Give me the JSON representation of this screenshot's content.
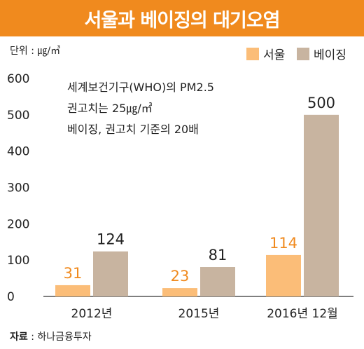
{
  "title": "서울과 베이징의 대기오염",
  "source_label": "자료",
  "source_value": "하나금융투자",
  "colors": {
    "seoul": "#fbbd78",
    "beijing": "#c8b4a0",
    "seoul_label": "#f08a1e",
    "title_bg": "#f08a1e"
  },
  "chart_data": {
    "type": "bar",
    "unit_label": "단위 : ㎍/㎥",
    "categories": [
      "2012년",
      "2015년",
      "2016년 12월"
    ],
    "series": [
      {
        "name": "서울",
        "values": [
          31,
          23,
          114
        ]
      },
      {
        "name": "베이징",
        "values": [
          124,
          81,
          500
        ]
      }
    ],
    "value_labels": [
      [
        "31",
        "23",
        "114"
      ],
      [
        "124",
        "81",
        "500"
      ]
    ],
    "ylim": [
      0,
      600
    ],
    "yticks": [
      0,
      100,
      200,
      300,
      400,
      500,
      600
    ],
    "legend_position": "top-right",
    "annotation": [
      "세계보건기구(WHO)의 PM2.5",
      "권고치는 25㎍/㎥",
      "베이징, 권고치 기준의 20배"
    ]
  }
}
